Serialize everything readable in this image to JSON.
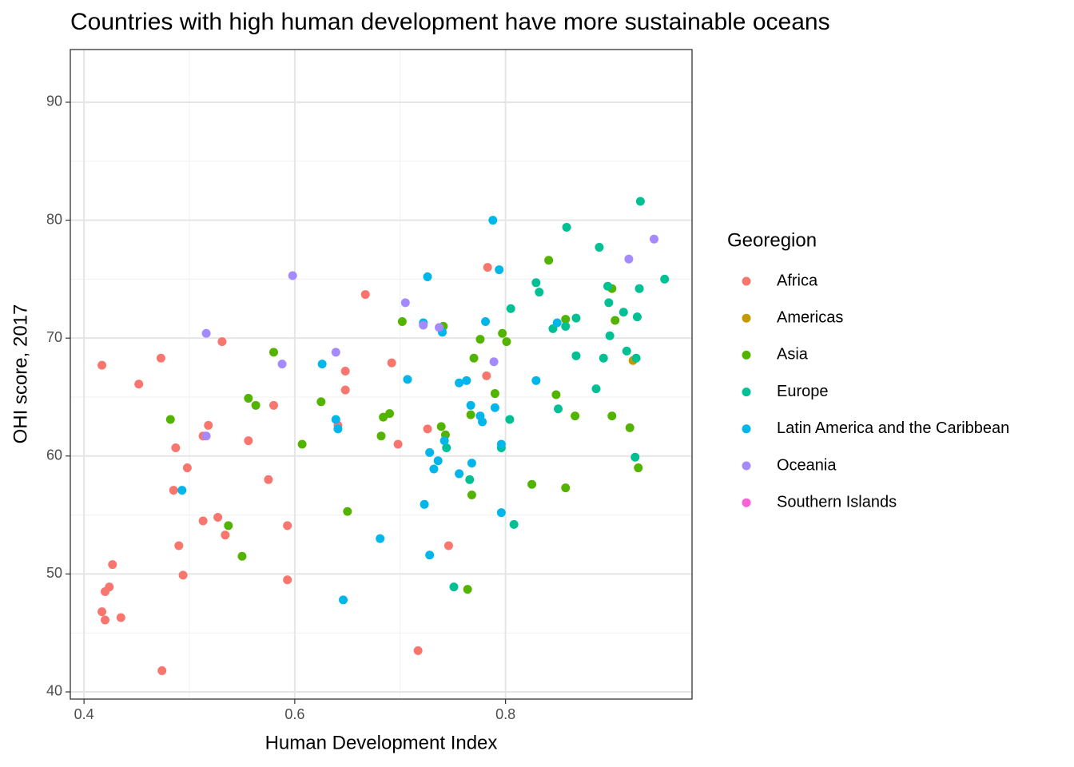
{
  "chart_data": {
    "type": "scatter",
    "title": "Countries with high human development have more sustainable oceans",
    "x_label": "Human Development Index",
    "y_label": "OHI score, 2017",
    "legend_title": "Georegion",
    "legend_position": "right",
    "grid": true,
    "xlim": [
      0.387,
      0.977
    ],
    "ylim": [
      39.39,
      94.47
    ],
    "xticks": [
      0.4,
      0.6,
      0.8
    ],
    "yticks": [
      40,
      50,
      60,
      70,
      80,
      90
    ],
    "series": [
      {
        "name": "Africa",
        "color": "#F8766D",
        "x": [
          0.417,
          0.42,
          0.42,
          0.424,
          0.427,
          0.435,
          0.417,
          0.452,
          0.473,
          0.474,
          0.485,
          0.487,
          0.49,
          0.494,
          0.498,
          0.513,
          0.513,
          0.518,
          0.527,
          0.531,
          0.534,
          0.556,
          0.575,
          0.58,
          0.593,
          0.593,
          0.641,
          0.648,
          0.648,
          0.667,
          0.692,
          0.698,
          0.717,
          0.726,
          0.746,
          0.782,
          0.783
        ],
        "values": [
          46.8,
          48.5,
          46.1,
          48.9,
          50.8,
          46.3,
          67.7,
          66.1,
          68.3,
          41.8,
          57.1,
          60.7,
          52.4,
          49.9,
          59.0,
          61.7,
          54.5,
          62.6,
          54.8,
          69.7,
          53.3,
          61.3,
          58.0,
          64.3,
          54.1,
          49.5,
          62.6,
          67.2,
          65.6,
          73.7,
          67.9,
          61.0,
          43.5,
          62.3,
          52.4,
          66.8,
          76.0
        ]
      },
      {
        "name": "Americas",
        "color": "#C49A00",
        "x": [
          0.921
        ],
        "values": [
          68.1
        ]
      },
      {
        "name": "Asia",
        "color": "#53B400",
        "x": [
          0.482,
          0.537,
          0.55,
          0.556,
          0.563,
          0.58,
          0.607,
          0.625,
          0.65,
          0.682,
          0.684,
          0.69,
          0.702,
          0.739,
          0.741,
          0.743,
          0.764,
          0.767,
          0.768,
          0.77,
          0.776,
          0.79,
          0.797,
          0.801,
          0.825,
          0.841,
          0.848,
          0.857,
          0.857,
          0.866,
          0.901,
          0.904,
          0.901,
          0.918,
          0.926
        ],
        "values": [
          63.1,
          54.1,
          51.5,
          64.9,
          64.3,
          68.8,
          61.0,
          64.6,
          55.3,
          61.7,
          63.3,
          63.6,
          71.4,
          62.5,
          71.0,
          61.8,
          48.7,
          63.5,
          56.7,
          68.3,
          69.9,
          65.3,
          70.4,
          69.7,
          57.6,
          76.6,
          65.2,
          71.6,
          57.3,
          63.4,
          74.2,
          71.5,
          63.4,
          62.4,
          59.0
        ]
      },
      {
        "name": "Europe",
        "color": "#00C094",
        "x": [
          0.744,
          0.751,
          0.766,
          0.796,
          0.804,
          0.805,
          0.808,
          0.829,
          0.832,
          0.845,
          0.85,
          0.857,
          0.858,
          0.867,
          0.867,
          0.886,
          0.889,
          0.893,
          0.897,
          0.898,
          0.899,
          0.912,
          0.915,
          0.923,
          0.924,
          0.925,
          0.927,
          0.928,
          0.951
        ],
        "values": [
          60.7,
          48.9,
          58.0,
          60.7,
          63.1,
          72.5,
          54.2,
          74.7,
          73.9,
          70.8,
          64.0,
          71.0,
          79.4,
          71.7,
          68.5,
          65.7,
          77.7,
          68.3,
          74.4,
          73.0,
          70.2,
          72.2,
          68.9,
          59.9,
          68.3,
          71.8,
          74.2,
          81.6,
          75.0
        ]
      },
      {
        "name": "Latin America and the Caribbean",
        "color": "#00B6EB",
        "x": [
          0.493,
          0.626,
          0.639,
          0.641,
          0.646,
          0.681,
          0.707,
          0.722,
          0.723,
          0.726,
          0.728,
          0.728,
          0.732,
          0.736,
          0.74,
          0.742,
          0.756,
          0.756,
          0.763,
          0.767,
          0.768,
          0.776,
          0.778,
          0.781,
          0.788,
          0.79,
          0.794,
          0.796,
          0.796,
          0.829,
          0.849
        ],
        "values": [
          57.1,
          67.8,
          63.1,
          62.3,
          47.8,
          53.0,
          66.5,
          71.3,
          55.9,
          75.2,
          60.3,
          51.6,
          58.9,
          59.6,
          70.5,
          61.3,
          58.5,
          66.2,
          66.4,
          64.3,
          59.4,
          63.4,
          62.9,
          71.4,
          80.0,
          64.1,
          75.8,
          61.0,
          55.2,
          66.4,
          71.3
        ]
      },
      {
        "name": "Oceania",
        "color": "#A58AFF",
        "x": [
          0.516,
          0.516,
          0.588,
          0.598,
          0.639,
          0.705,
          0.722,
          0.737,
          0.789,
          0.917,
          0.941
        ],
        "values": [
          70.4,
          61.7,
          67.8,
          75.3,
          68.8,
          73.0,
          71.1,
          70.9,
          68.0,
          76.7,
          78.4
        ]
      },
      {
        "name": "Southern Islands",
        "color": "#FB61D7",
        "x": [],
        "values": []
      }
    ]
  }
}
